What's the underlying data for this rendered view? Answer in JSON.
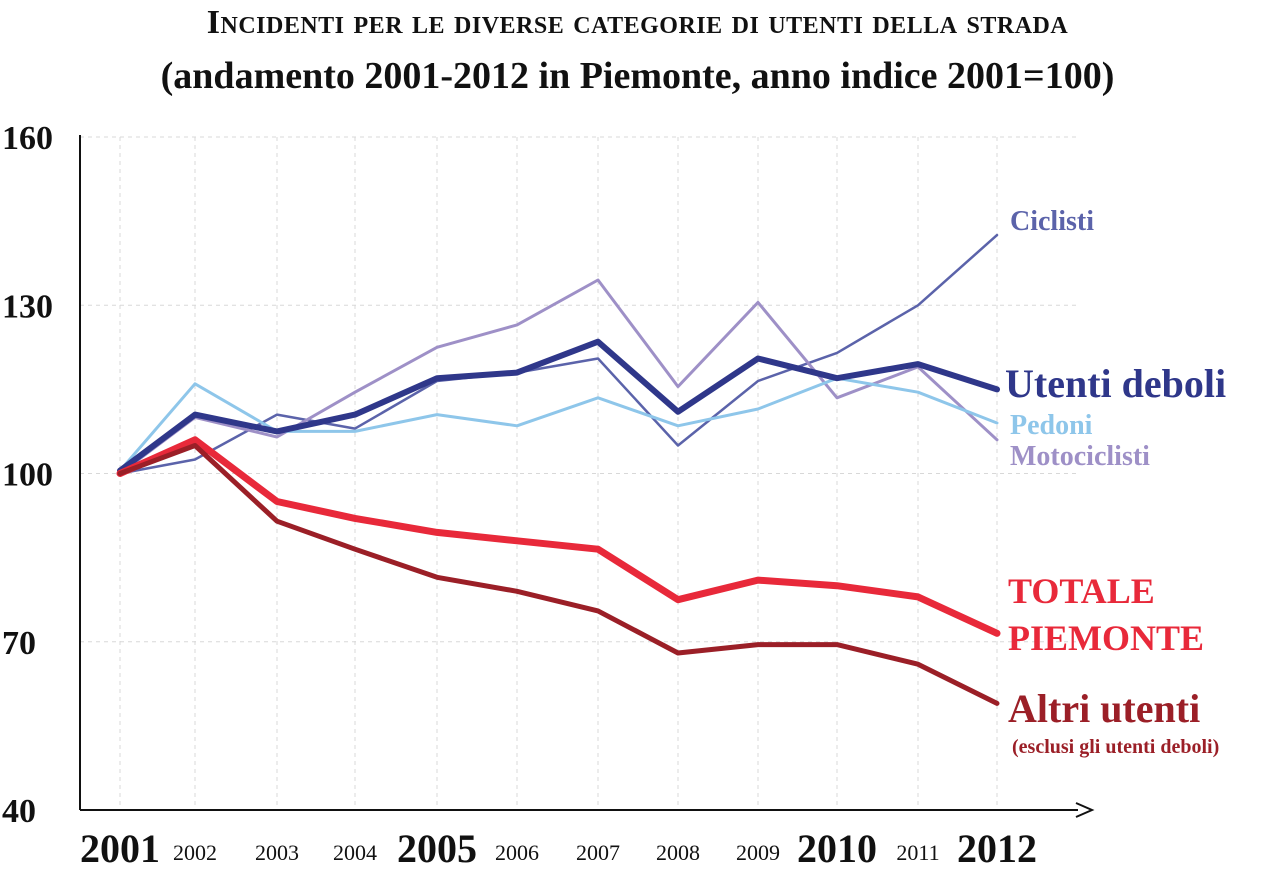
{
  "chart_data": {
    "type": "line",
    "title": "Incidenti per le diverse categorie di utenti della strada",
    "subtitle": "(andamento 2001-2012 in Piemonte, anno indice 2001=100)",
    "xlabel": "",
    "ylabel": "",
    "ylim": [
      40,
      160
    ],
    "yticks": [
      40,
      70,
      100,
      130,
      160
    ],
    "grid": true,
    "x": [
      2001,
      2002,
      2003,
      2004,
      2005,
      2006,
      2007,
      2008,
      2009,
      2010,
      2011,
      2012
    ],
    "x_tick_labels": [
      "2001",
      "2002",
      "2003",
      "2004",
      "2005",
      "2006",
      "2007",
      "2008",
      "2009",
      "2010",
      "2011",
      "2012"
    ],
    "x_major_ticks": [
      "2001",
      "2005",
      "2010",
      "2012"
    ],
    "series": [
      {
        "name": "Ciclisti",
        "color": "#5b63aa",
        "width": 2.5,
        "values": [
          100,
          102.5,
          110.5,
          108,
          116.5,
          118,
          120.5,
          105,
          116.5,
          121.5,
          130,
          142.5
        ]
      },
      {
        "name": "Motociclisti",
        "color": "#9e90c7",
        "width": 3,
        "values": [
          100,
          110,
          106.5,
          114.5,
          122.5,
          126.5,
          134.5,
          115.5,
          130.5,
          113.5,
          119,
          106
        ]
      },
      {
        "name": "Pedoni",
        "color": "#8ec6ea",
        "width": 3,
        "values": [
          100.5,
          116,
          107.5,
          107.5,
          110.5,
          108.5,
          113.5,
          108.5,
          111.5,
          117,
          114.5,
          109
        ]
      },
      {
        "name": "Utenti deboli",
        "color": "#2f378a",
        "width": 6,
        "values": [
          100.5,
          110.5,
          107.5,
          110.5,
          117,
          118,
          123.5,
          111,
          120.5,
          117,
          119.5,
          115
        ]
      },
      {
        "name": "TOTALE PIEMONTE",
        "color": "#e8293a",
        "width": 7,
        "values": [
          100,
          106,
          95,
          92,
          89.5,
          88,
          86.5,
          77.5,
          81,
          80,
          78,
          71.5
        ]
      },
      {
        "name": "Altri utenti",
        "color": "#9b1f27",
        "width": 5,
        "values": [
          100,
          105,
          91.5,
          86.5,
          81.5,
          79,
          75.5,
          68,
          69.5,
          69.5,
          66,
          59
        ]
      }
    ],
    "annotations": [
      {
        "series": "Ciclisti",
        "text": "Ciclisti",
        "color": "#5b63aa"
      },
      {
        "series": "Utenti deboli",
        "text": "Utenti deboli",
        "color": "#2f378a"
      },
      {
        "series": "Pedoni",
        "text": "Pedoni",
        "color": "#8ec6ea"
      },
      {
        "series": "Motociclisti",
        "text": "Motociclisti",
        "color": "#9e90c7"
      },
      {
        "series": "TOTALE PIEMONTE",
        "text": "TOTALE",
        "text2": "PIEMONTE",
        "color": "#e8293a"
      },
      {
        "series": "Altri utenti",
        "text": "Altri utenti",
        "note": "(esclusi gli utenti deboli)",
        "color": "#9b1f27"
      }
    ]
  }
}
